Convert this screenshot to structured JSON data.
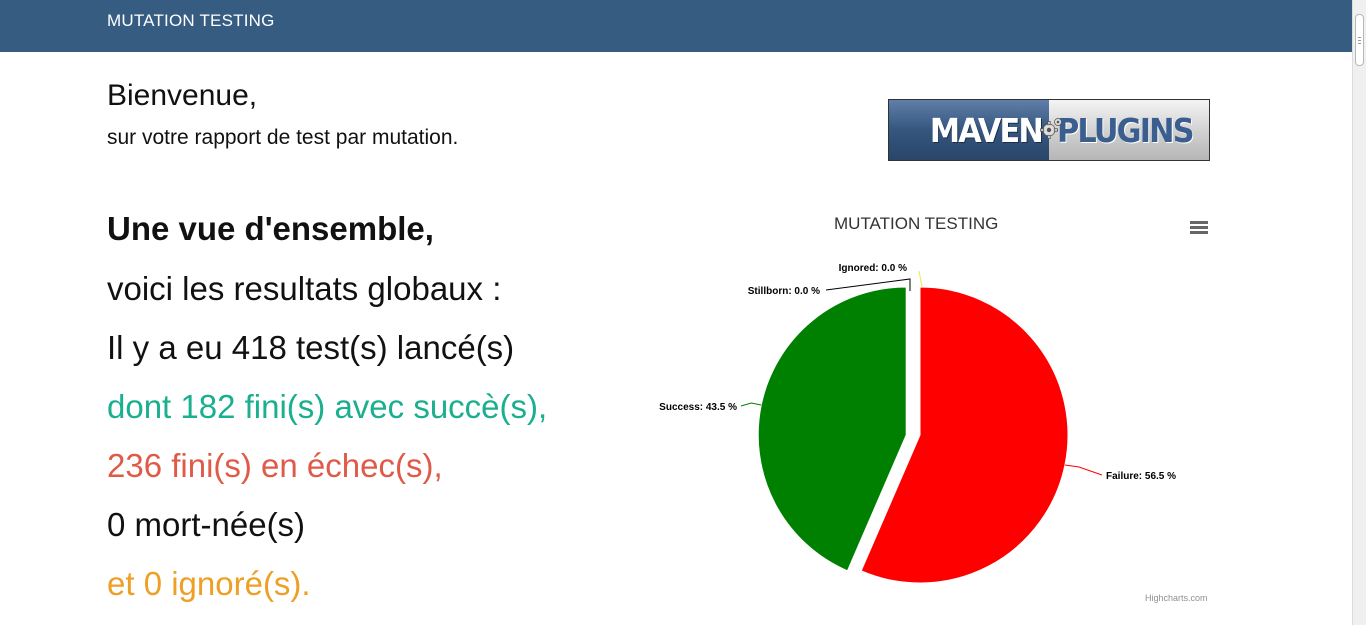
{
  "navbar": {
    "title": "MUTATION TESTING"
  },
  "welcome": {
    "title": "Bienvenue,",
    "subtitle": "sur votre rapport de test par mutation."
  },
  "logo": {
    "left_text": "MAVEN",
    "right_text": "PLUGINS"
  },
  "summary": {
    "heading": "Une vue d'ensemble,",
    "intro": "voici les resultats globaux :",
    "total": "Il y a eu 418 test(s) lancé(s)",
    "success": "dont 182 fini(s) avec succè(s),",
    "failure": "236 fini(s) en échec(s),",
    "stillborn": "0 mort-née(s)",
    "ignored": "et 0 ignoré(s)."
  },
  "colors": {
    "navbar": "#365c82",
    "success_text": "#1aaf8e",
    "failure_text": "#e05a48",
    "ignored_text": "#eda025",
    "slice_success": "#008000",
    "slice_failure": "#ff0000",
    "slice_ignored": "#ffff66",
    "slice_stillborn": "#000000"
  },
  "chart_menu_icon": "hamburger-menu-icon",
  "chart_credits": "Highcharts.com",
  "chart_data": {
    "type": "pie",
    "title": "MUTATION TESTING",
    "slices": [
      {
        "name": "Failure",
        "value": 56.5,
        "label": "Failure: 56.5 %",
        "color": "#ff0000"
      },
      {
        "name": "Success",
        "value": 43.5,
        "label": "Success: 43.5 %",
        "color": "#008000"
      },
      {
        "name": "Stillborn",
        "value": 0.0,
        "label": "Stillborn: 0.0 %",
        "color": "#000000"
      },
      {
        "name": "Ignored",
        "value": 0.0,
        "label": "Ignored: 0.0 %",
        "color": "#ffff66"
      }
    ]
  }
}
